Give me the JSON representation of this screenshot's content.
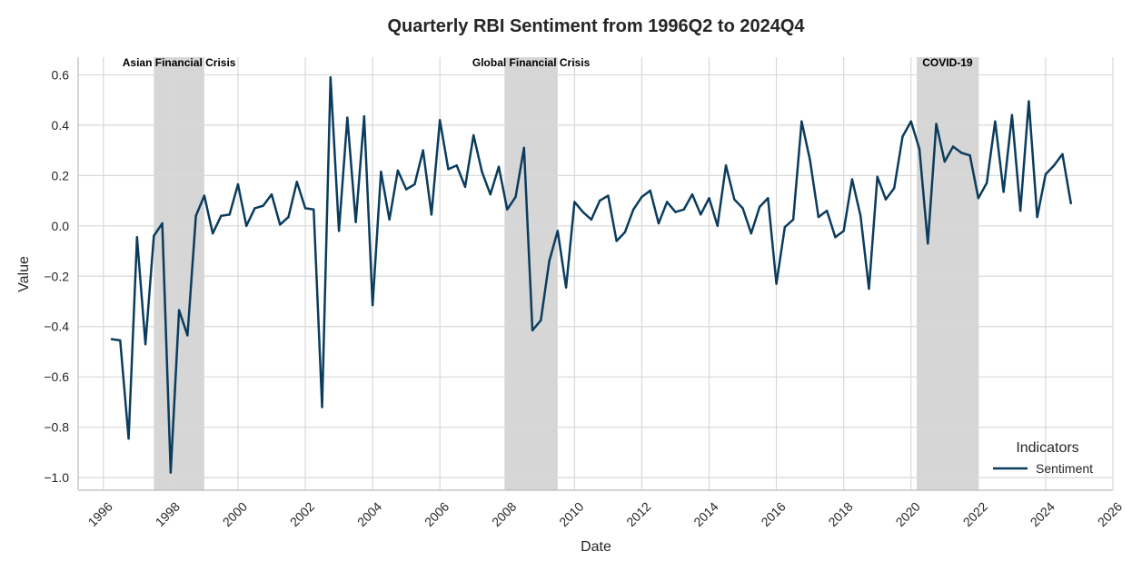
{
  "chart_data": {
    "type": "line",
    "title": "Quarterly RBI Sentiment from 1996Q2 to 2024Q4",
    "xlabel": "Date",
    "ylabel": "Value",
    "xlim": [
      1995.25,
      2026.0
    ],
    "ylim": [
      -1.05,
      0.67
    ],
    "x_ticks": [
      1996,
      1998,
      2000,
      2002,
      2004,
      2006,
      2008,
      2010,
      2012,
      2014,
      2016,
      2018,
      2020,
      2022,
      2024,
      2026
    ],
    "y_ticks": [
      -1.0,
      -0.8,
      -0.6,
      -0.4,
      -0.2,
      0.0,
      0.2,
      0.4,
      0.6
    ],
    "y_tick_labels": [
      "−1.0",
      "−0.8",
      "−0.6",
      "−0.4",
      "−0.2",
      "0.0",
      "0.2",
      "0.4",
      "0.6"
    ],
    "grid": true,
    "legend": {
      "title": "Indicators",
      "placement": "lower-right"
    },
    "colors": {
      "line": "#0b3c5d",
      "band": "#d6d6d6",
      "grid": "#d9d9d9",
      "axis": "#bbbbbb"
    },
    "shaded_regions": [
      {
        "label": "Asian Financial Crisis",
        "start": 1997.5,
        "end": 1999.0
      },
      {
        "label": "Global Financial Crisis",
        "start": 2007.92,
        "end": 2009.5
      },
      {
        "label": "COVID-19",
        "start": 2020.17,
        "end": 2022.0
      }
    ],
    "series": [
      {
        "name": "Sentiment",
        "x": [
          "1996Q2",
          "1996Q3",
          "1996Q4",
          "1997Q1",
          "1997Q2",
          "1997Q3",
          "1997Q4",
          "1998Q1",
          "1998Q2",
          "1998Q3",
          "1998Q4",
          "1999Q1",
          "1999Q2",
          "1999Q3",
          "1999Q4",
          "2000Q1",
          "2000Q2",
          "2000Q3",
          "2000Q4",
          "2001Q1",
          "2001Q2",
          "2001Q3",
          "2001Q4",
          "2002Q1",
          "2002Q2",
          "2002Q3",
          "2002Q4",
          "2003Q1",
          "2003Q2",
          "2003Q3",
          "2003Q4",
          "2004Q1",
          "2004Q2",
          "2004Q3",
          "2004Q4",
          "2005Q1",
          "2005Q2",
          "2005Q3",
          "2005Q4",
          "2006Q1",
          "2006Q2",
          "2006Q3",
          "2006Q4",
          "2007Q1",
          "2007Q2",
          "2007Q3",
          "2007Q4",
          "2008Q1",
          "2008Q2",
          "2008Q3",
          "2008Q4",
          "2009Q1",
          "2009Q2",
          "2009Q3",
          "2009Q4",
          "2010Q1",
          "2010Q2",
          "2010Q3",
          "2010Q4",
          "2011Q1",
          "2011Q2",
          "2011Q3",
          "2011Q4",
          "2012Q1",
          "2012Q2",
          "2012Q3",
          "2012Q4",
          "2013Q1",
          "2013Q2",
          "2013Q3",
          "2013Q4",
          "2014Q1",
          "2014Q2",
          "2014Q3",
          "2014Q4",
          "2015Q1",
          "2015Q2",
          "2015Q3",
          "2015Q4",
          "2016Q1",
          "2016Q2",
          "2016Q3",
          "2016Q4",
          "2017Q1",
          "2017Q2",
          "2017Q3",
          "2017Q4",
          "2018Q1",
          "2018Q2",
          "2018Q3",
          "2018Q4",
          "2019Q1",
          "2019Q2",
          "2019Q3",
          "2019Q4",
          "2020Q1",
          "2020Q2",
          "2020Q3",
          "2020Q4",
          "2021Q1",
          "2021Q2",
          "2021Q3",
          "2021Q4",
          "2022Q1",
          "2022Q2",
          "2022Q3",
          "2022Q4",
          "2023Q1",
          "2023Q2",
          "2023Q3",
          "2023Q4",
          "2024Q1",
          "2024Q2",
          "2024Q3",
          "2024Q4"
        ],
        "values": [
          -0.45,
          -0.455,
          -0.845,
          -0.045,
          -0.47,
          -0.04,
          0.01,
          -0.98,
          -0.335,
          -0.435,
          0.04,
          0.12,
          -0.03,
          0.04,
          0.045,
          0.165,
          0.0,
          0.07,
          0.08,
          0.125,
          0.005,
          0.035,
          0.175,
          0.07,
          0.065,
          -0.72,
          0.59,
          -0.02,
          0.43,
          0.015,
          0.435,
          -0.315,
          0.215,
          0.025,
          0.22,
          0.145,
          0.165,
          0.3,
          0.045,
          0.42,
          0.225,
          0.24,
          0.155,
          0.36,
          0.215,
          0.125,
          0.235,
          0.065,
          0.115,
          0.31,
          -0.415,
          -0.375,
          -0.14,
          -0.02,
          -0.245,
          0.095,
          0.055,
          0.025,
          0.1,
          0.12,
          -0.06,
          -0.025,
          0.065,
          0.115,
          0.14,
          0.01,
          0.095,
          0.055,
          0.065,
          0.125,
          0.045,
          0.11,
          0.0,
          0.24,
          0.105,
          0.07,
          -0.03,
          0.075,
          0.11,
          -0.23,
          -0.005,
          0.025,
          0.415,
          0.26,
          0.035,
          0.06,
          -0.045,
          -0.02,
          0.185,
          0.04,
          -0.25,
          0.195,
          0.105,
          0.15,
          0.355,
          0.415,
          0.305,
          -0.07,
          0.405,
          0.255,
          0.315,
          0.29,
          0.28,
          0.11,
          0.17,
          0.415,
          0.135,
          0.44,
          0.06,
          0.495,
          0.035,
          0.205,
          0.24,
          0.285,
          0.09
        ]
      }
    ]
  }
}
